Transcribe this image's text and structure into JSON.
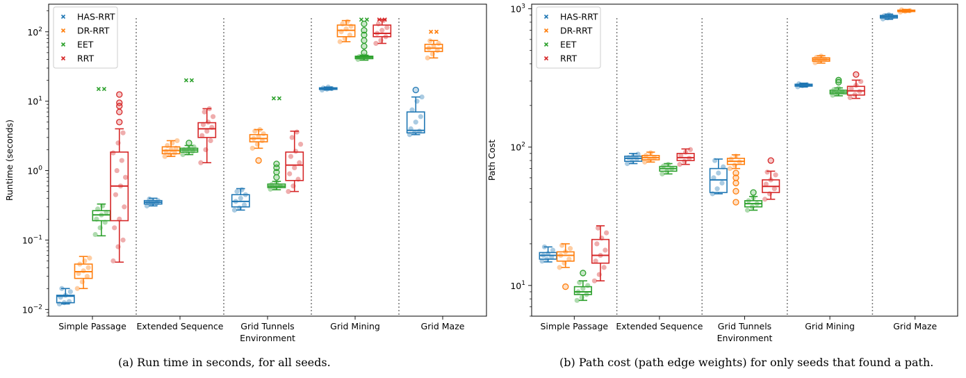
{
  "colors": {
    "HAS-RRT": "#1f77b4",
    "DR-RRT": "#ff7f0e",
    "EET": "#2ca02c",
    "RRT": "#d62728"
  },
  "chart_data": [
    {
      "type": "box",
      "caption": "(a) Run time in seconds, for all seeds.",
      "xlabel": "Environment",
      "ylabel": "Runtime (seconds)",
      "yscale": "log",
      "ylim": [
        0.008,
        250
      ],
      "yticks": [
        {
          "v": 0.01,
          "base": "10",
          "exp": "−2"
        },
        {
          "v": 0.1,
          "base": "10",
          "exp": "−1"
        },
        {
          "v": 1,
          "base": "10",
          "exp": "0"
        },
        {
          "v": 10,
          "base": "10",
          "exp": "1"
        },
        {
          "v": 100,
          "base": "10",
          "exp": "2"
        }
      ],
      "categories": [
        "Simple Passage",
        "Extended Sequence",
        "Grid Tunnels",
        "Grid Mining",
        "Grid Maze"
      ],
      "legend": {
        "position": "upper-left",
        "entries": [
          "HAS-RRT",
          "DR-RRT",
          "EET",
          "RRT"
        ]
      },
      "series": [
        {
          "name": "HAS-RRT",
          "boxes": [
            {
              "q1": 0.0125,
              "median": 0.0155,
              "q3": 0.016,
              "wlo": 0.012,
              "whi": 0.02,
              "fliers": [],
              "pts": [
                0.012,
                0.0125,
                0.013,
                0.015,
                0.016,
                0.018,
                0.02
              ]
            },
            {
              "q1": 0.33,
              "median": 0.35,
              "q3": 0.37,
              "wlo": 0.31,
              "whi": 0.4,
              "fliers": [],
              "pts": [
                0.31,
                0.33,
                0.34,
                0.35,
                0.36,
                0.37,
                0.39
              ]
            },
            {
              "q1": 0.3,
              "median": 0.36,
              "q3": 0.45,
              "wlo": 0.27,
              "whi": 0.55,
              "fliers": [],
              "pts": [
                0.27,
                0.29,
                0.32,
                0.36,
                0.4,
                0.45,
                0.5,
                0.53
              ]
            },
            {
              "q1": 14.8,
              "median": 15.2,
              "q3": 15.6,
              "wlo": 14.5,
              "whi": 16.0,
              "fliers": [],
              "pts": [
                14.5,
                14.9,
                15.2,
                15.5,
                16.0
              ]
            },
            {
              "q1": 3.5,
              "median": 3.8,
              "q3": 7.0,
              "wlo": 3.3,
              "whi": 11.5,
              "fliers": [
                14.5
              ],
              "pts": [
                3.3,
                3.5,
                3.7,
                4.0,
                5.0,
                6.0,
                7.5,
                10.0,
                11.5
              ]
            }
          ],
          "crosses": [
            null,
            null,
            null,
            null,
            null
          ]
        },
        {
          "name": "DR-RRT",
          "boxes": [
            {
              "q1": 0.028,
              "median": 0.035,
              "q3": 0.045,
              "wlo": 0.02,
              "whi": 0.058,
              "fliers": [],
              "pts": [
                0.02,
                0.025,
                0.03,
                0.033,
                0.036,
                0.04,
                0.045,
                0.05,
                0.055
              ]
            },
            {
              "q1": 1.75,
              "median": 1.95,
              "q3": 2.2,
              "wlo": 1.6,
              "whi": 2.7,
              "fliers": [],
              "pts": [
                1.6,
                1.7,
                1.8,
                1.9,
                2.0,
                2.1,
                2.3,
                2.5,
                2.7
              ]
            },
            {
              "q1": 2.6,
              "median": 2.9,
              "q3": 3.3,
              "wlo": 2.1,
              "whi": 3.9,
              "fliers": [
                1.4
              ],
              "pts": [
                2.1,
                2.4,
                2.7,
                2.9,
                3.1,
                3.4,
                3.7,
                3.9
              ]
            },
            {
              "q1": 85,
              "median": 105,
              "q3": 125,
              "wlo": 72,
              "whi": 145,
              "fliers": [],
              "pts": [
                72,
                80,
                90,
                100,
                110,
                120,
                130,
                140
              ]
            },
            {
              "q1": 52,
              "median": 58,
              "q3": 66,
              "wlo": 42,
              "whi": 75,
              "fliers": [],
              "pts": [
                42,
                48,
                54,
                58,
                62,
                68,
                74
              ]
            }
          ],
          "crosses": [
            null,
            null,
            null,
            null,
            100
          ]
        },
        {
          "name": "EET",
          "boxes": [
            {
              "q1": 0.19,
              "median": 0.23,
              "q3": 0.265,
              "wlo": 0.115,
              "whi": 0.33,
              "fliers": [],
              "pts": [
                0.12,
                0.15,
                0.18,
                0.2,
                0.23,
                0.25,
                0.28,
                0.31
              ]
            },
            {
              "q1": 1.85,
              "median": 1.98,
              "q3": 2.1,
              "wlo": 1.7,
              "whi": 2.3,
              "fliers": [
                2.5
              ],
              "pts": [
                1.7,
                1.8,
                1.9,
                2.0,
                2.1,
                2.2
              ]
            },
            {
              "q1": 0.57,
              "median": 0.6,
              "q3": 0.64,
              "wlo": 0.53,
              "whi": 0.7,
              "fliers": [
                0.8,
                0.95,
                1.1,
                1.25
              ],
              "pts": [
                0.54,
                0.57,
                0.6,
                0.63,
                0.67
              ]
            },
            {
              "q1": 41,
              "median": 43,
              "q3": 44.5,
              "wlo": 39,
              "whi": 46,
              "fliers": [
                50,
                62,
                75,
                90,
                105,
                130
              ],
              "pts": [
                40,
                42,
                43,
                44,
                45
              ]
            },
            null
          ],
          "crosses": [
            15,
            20,
            11,
            150,
            null
          ]
        },
        {
          "name": "RRT",
          "boxes": [
            {
              "q1": 0.19,
              "median": 0.6,
              "q3": 1.85,
              "wlo": 0.048,
              "whi": 4.0,
              "fliers": [
                5.0,
                7.0,
                8.5,
                9.5,
                12.5
              ],
              "pts": [
                0.05,
                0.08,
                0.1,
                0.15,
                0.2,
                0.3,
                0.45,
                0.6,
                0.8,
                1.0,
                1.4,
                1.8,
                2.5,
                3.5
              ]
            },
            {
              "q1": 3.0,
              "median": 4.0,
              "q3": 4.9,
              "wlo": 1.3,
              "whi": 7.8,
              "fliers": [],
              "pts": [
                1.3,
                2.0,
                2.7,
                3.2,
                3.7,
                4.2,
                4.6,
                5.0,
                6.0,
                7.0,
                7.8
              ]
            },
            {
              "q1": 0.72,
              "median": 1.2,
              "q3": 1.85,
              "wlo": 0.5,
              "whi": 3.7,
              "fliers": [],
              "pts": [
                0.5,
                0.6,
                0.75,
                0.9,
                1.1,
                1.3,
                1.6,
                1.9,
                2.4,
                3.0,
                3.6
              ]
            },
            {
              "q1": 85,
              "median": 95,
              "q3": 125,
              "wlo": 68,
              "whi": 150,
              "fliers": [],
              "pts": [
                68,
                75,
                85,
                95,
                105,
                115,
                130,
                145
              ]
            },
            null
          ],
          "crosses": [
            null,
            null,
            null,
            150,
            null
          ]
        }
      ]
    },
    {
      "type": "box",
      "caption": "(b) Path cost (path edge weights) for only seeds that found a path.",
      "xlabel": "Environment",
      "ylabel": "Path Cost",
      "yscale": "log",
      "ylim": [
        6,
        1080
      ],
      "yticks": [
        {
          "v": 10,
          "base": "10",
          "exp": "1"
        },
        {
          "v": 100,
          "base": "10",
          "exp": "2"
        },
        {
          "v": 1000,
          "base": "10",
          "exp": "3"
        }
      ],
      "categories": [
        "Simple Passage",
        "Extended Sequence",
        "Grid Tunnels",
        "Grid Mining",
        "Grid Maze"
      ],
      "legend": {
        "position": "upper-left",
        "entries": [
          "HAS-RRT",
          "DR-RRT",
          "EET",
          "RRT"
        ]
      },
      "series": [
        {
          "name": "HAS-RRT",
          "boxes": [
            {
              "q1": 15.5,
              "median": 16.5,
              "q3": 17.3,
              "wlo": 14.8,
              "whi": 19.0,
              "fliers": [],
              "pts": [
                15,
                15.5,
                16,
                16.5,
                17,
                18,
                19
              ]
            },
            {
              "q1": 79,
              "median": 83,
              "q3": 86,
              "wlo": 76,
              "whi": 90,
              "fliers": [],
              "pts": [
                76,
                79,
                82,
                84,
                86,
                89
              ]
            },
            {
              "q1": 47,
              "median": 58,
              "q3": 70,
              "wlo": 46,
              "whi": 82,
              "fliers": [],
              "pts": [
                46,
                50,
                55,
                60,
                65,
                72,
                80
              ]
            },
            {
              "q1": 276,
              "median": 281,
              "q3": 285,
              "wlo": 272,
              "whi": 290,
              "fliers": [],
              "pts": [
                273,
                278,
                282,
                287
              ]
            },
            {
              "q1": 858,
              "median": 878,
              "q3": 895,
              "wlo": 840,
              "whi": 915,
              "fliers": [],
              "pts": [
                845,
                860,
                875,
                890,
                905
              ]
            }
          ],
          "crosses": [
            null,
            null,
            null,
            null,
            null
          ]
        },
        {
          "name": "DR-RRT",
          "boxes": [
            {
              "q1": 15.0,
              "median": 16.5,
              "q3": 17.5,
              "wlo": 13.5,
              "whi": 20.0,
              "fliers": [
                9.8
              ],
              "pts": [
                13.5,
                14.5,
                15.5,
                16.5,
                17.5,
                18.5,
                19.5
              ]
            },
            {
              "q1": 81,
              "median": 84,
              "q3": 87,
              "wlo": 78,
              "whi": 92,
              "fliers": [],
              "pts": [
                78,
                81,
                84,
                87,
                91
              ]
            },
            {
              "q1": 75,
              "median": 79,
              "q3": 83,
              "wlo": 70,
              "whi": 88,
              "fliers": [
                40,
                48,
                55,
                60,
                65
              ],
              "pts": [
                70,
                74,
                78,
                82,
                86
              ]
            },
            {
              "q1": 418,
              "median": 430,
              "q3": 442,
              "wlo": 405,
              "whi": 458,
              "fliers": [],
              "pts": [
                408,
                420,
                432,
                445,
                455
              ]
            },
            {
              "q1": 955,
              "median": 968,
              "q3": 978,
              "wlo": 945,
              "whi": 990,
              "fliers": [],
              "pts": [
                948,
                960,
                970,
                982
              ]
            }
          ],
          "crosses": [
            null,
            null,
            null,
            null,
            null
          ]
        },
        {
          "name": "EET",
          "boxes": [
            {
              "q1": 8.6,
              "median": 9.0,
              "q3": 9.8,
              "wlo": 7.8,
              "whi": 10.8,
              "fliers": [
                12.3
              ],
              "pts": [
                7.8,
                8.2,
                8.6,
                9.0,
                9.5,
                10.0,
                10.5
              ]
            },
            {
              "q1": 67,
              "median": 70,
              "q3": 72.5,
              "wlo": 64,
              "whi": 76,
              "fliers": [],
              "pts": [
                64,
                67,
                70,
                73,
                75
              ]
            },
            {
              "q1": 37,
              "median": 39,
              "q3": 41,
              "wlo": 35,
              "whi": 44,
              "fliers": [
                47
              ],
              "pts": [
                35,
                37,
                39,
                41,
                43
              ]
            },
            {
              "q1": 243,
              "median": 250,
              "q3": 258,
              "wlo": 235,
              "whi": 268,
              "fliers": [
                295,
                305
              ],
              "pts": [
                237,
                245,
                252,
                260,
                266
              ]
            },
            null
          ],
          "crosses": [
            null,
            null,
            null,
            null,
            null
          ]
        },
        {
          "name": "RRT",
          "boxes": [
            {
              "q1": 14.5,
              "median": 16.5,
              "q3": 21.5,
              "wlo": 10.8,
              "whi": 27.0,
              "fliers": [],
              "pts": [
                10.8,
                12,
                13.5,
                15,
                16.5,
                18,
                20,
                22,
                24,
                26
              ]
            },
            {
              "q1": 80,
              "median": 84,
              "q3": 90,
              "wlo": 75,
              "whi": 97,
              "fliers": [],
              "pts": [
                75,
                79,
                83,
                87,
                92,
                96
              ]
            },
            {
              "q1": 47,
              "median": 52,
              "q3": 58,
              "wlo": 42,
              "whi": 67,
              "fliers": [
                80
              ],
              "pts": [
                42,
                46,
                50,
                54,
                58,
                63,
                66
              ]
            },
            {
              "q1": 238,
              "median": 255,
              "q3": 275,
              "wlo": 225,
              "whi": 305,
              "fliers": [
                335
              ],
              "pts": [
                228,
                240,
                252,
                265,
                280,
                298
              ]
            },
            null
          ],
          "crosses": [
            null,
            null,
            null,
            null,
            null
          ]
        }
      ]
    }
  ]
}
